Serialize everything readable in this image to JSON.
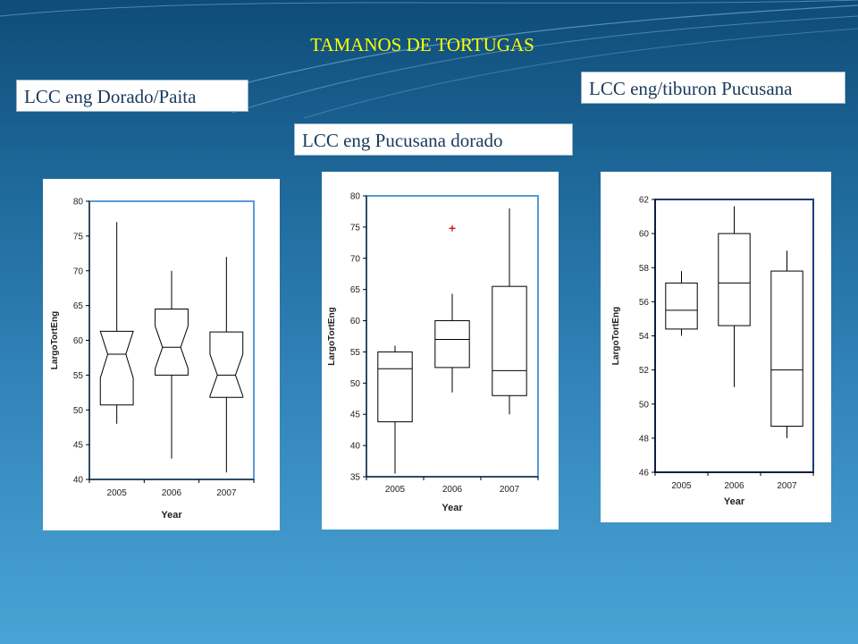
{
  "slide": {
    "title": "TAMANOS DE TORTUGAS",
    "labels": {
      "dorado_paita": "LCC eng Dorado/Paita",
      "pucusana_dorado": "LCC eng Pucusana dorado",
      "tiburon_pucusana": "LCC eng/tiburon Pucusana"
    }
  },
  "colors": {
    "title": "#ffff00",
    "frame_border": "#5b9bd5",
    "frame_border_dark": "#1f3b7a",
    "outlier": "#c00000"
  },
  "chart_data": [
    {
      "type": "boxplot",
      "title": "LCC eng Dorado/Paita",
      "xlabel": "Year",
      "ylabel": "LargoTortEng",
      "categories": [
        "2005",
        "2006",
        "2007"
      ],
      "ylim": [
        40,
        80
      ],
      "yticks": [
        40,
        45,
        50,
        55,
        60,
        65,
        70,
        75,
        80
      ],
      "notched": true,
      "boxes": [
        {
          "min": 48,
          "q1": 50.7,
          "median": 58,
          "q3": 61.3,
          "max": 77
        },
        {
          "min": 43,
          "q1": 55,
          "median": 59,
          "q3": 64.5,
          "max": 70
        },
        {
          "min": 41,
          "q1": 51.8,
          "median": 55,
          "q3": 61.2,
          "max": 72
        }
      ],
      "outliers": []
    },
    {
      "type": "boxplot",
      "title": "LCC eng Pucusana dorado",
      "xlabel": "Year",
      "ylabel": "LargoTortEng",
      "categories": [
        "2005",
        "2006",
        "2007"
      ],
      "ylim": [
        35,
        80
      ],
      "yticks": [
        35,
        40,
        45,
        50,
        55,
        60,
        65,
        70,
        75,
        80
      ],
      "notched": false,
      "boxes": [
        {
          "min": 35.5,
          "q1": 43.8,
          "median": 52.3,
          "q3": 55,
          "max": 56
        },
        {
          "min": 48.5,
          "q1": 52.5,
          "median": 57,
          "q3": 60,
          "max": 64.3
        },
        {
          "min": 45,
          "q1": 48,
          "median": 52,
          "q3": 65.5,
          "max": 78
        }
      ],
      "outliers": [
        {
          "category": "2006",
          "value": 74.8
        }
      ]
    },
    {
      "type": "boxplot",
      "title": "LCC eng/tiburon Pucusana",
      "xlabel": "Year",
      "ylabel": "LargoTortEng",
      "categories": [
        "2005",
        "2006",
        "2007"
      ],
      "ylim": [
        46,
        62
      ],
      "yticks": [
        46,
        48,
        50,
        52,
        54,
        56,
        58,
        60,
        62
      ],
      "notched": false,
      "boxes": [
        {
          "min": 54,
          "q1": 54.4,
          "median": 55.5,
          "q3": 57.1,
          "max": 57.8
        },
        {
          "min": 51,
          "q1": 54.6,
          "median": 57.1,
          "q3": 60,
          "max": 61.6
        },
        {
          "min": 48,
          "q1": 48.7,
          "median": 52,
          "q3": 57.8,
          "max": 59
        }
      ],
      "outliers": []
    }
  ]
}
